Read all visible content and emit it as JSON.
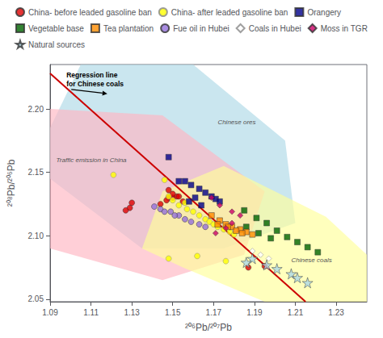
{
  "chart_data": {
    "type": "scatter",
    "xlabel": "²⁰⁶Pb/²⁰⁷Pb",
    "ylabel": "²⁰⁸Pb/²⁰⁶Pb",
    "xlim": [
      1.09,
      1.245
    ],
    "ylim": [
      2.048,
      2.235
    ],
    "xticks": [
      1.09,
      1.11,
      1.13,
      1.15,
      1.17,
      1.19,
      1.21,
      1.23
    ],
    "yticks": [
      2.05,
      {
        "value": 2.1,
        "label": "2.10"
      },
      2.15,
      {
        "value": 2.2,
        "label": "2.20"
      }
    ],
    "grid": false,
    "legend": "top",
    "regions": [
      {
        "name": "Chinese ores",
        "color": "#add8e6",
        "label_position": [
          1.172,
          2.192
        ],
        "polygon": [
          [
            1.105,
            2.235
          ],
          [
            1.16,
            2.235
          ],
          [
            1.205,
            2.175
          ],
          [
            1.21,
            2.11
          ],
          [
            1.175,
            2.09
          ],
          [
            1.135,
            2.09
          ],
          [
            1.09,
            2.145
          ],
          [
            1.09,
            2.185
          ]
        ]
      },
      {
        "name": "Traffic emission in China",
        "color": "#ffb6c1",
        "label_position": [
          1.093,
          2.162
        ],
        "polygon": [
          [
            1.09,
            2.2
          ],
          [
            1.145,
            2.195
          ],
          [
            1.195,
            2.135
          ],
          [
            1.185,
            2.085
          ],
          [
            1.145,
            2.065
          ],
          [
            1.09,
            2.09
          ]
        ]
      },
      {
        "name": "Chinese coals",
        "color": "#ffff99",
        "label_position": [
          1.208,
          2.083
        ],
        "polygon": [
          [
            1.145,
            2.135
          ],
          [
            1.175,
            2.155
          ],
          [
            1.225,
            2.115
          ],
          [
            1.245,
            2.085
          ],
          [
            1.245,
            2.048
          ],
          [
            1.195,
            2.048
          ],
          [
            1.155,
            2.075
          ],
          [
            1.135,
            2.09
          ]
        ]
      }
    ],
    "lines": [
      {
        "color": "#cc0000",
        "points": [
          [
            1.09,
            2.228
          ],
          [
            1.215,
            2.048
          ]
        ]
      }
    ],
    "annotations": [
      {
        "text": "Regression line\nfor Chinese coals",
        "x": 1.118,
        "y": 2.212,
        "text_position": [
          1.098,
          2.23
        ]
      }
    ],
    "series": [
      {
        "name": "China- before leaded gasoline ban",
        "color": "#dd0000",
        "marker": "circle",
        "values": [
          [
            1.148,
            2.13
          ],
          [
            1.15,
            2.13
          ],
          [
            1.152,
            2.131
          ],
          [
            1.15,
            2.133
          ],
          [
            1.147,
            2.128
          ],
          [
            1.155,
            2.127
          ],
          [
            1.144,
            2.125
          ],
          [
            1.13,
            2.126
          ],
          [
            1.129,
            2.122
          ],
          [
            1.127,
            2.12
          ],
          [
            1.148,
            2.136
          ],
          [
            1.153,
            2.131
          ],
          [
            1.195,
            2.076
          ],
          [
            1.187,
            2.075
          ]
        ]
      },
      {
        "name": "China- after leaded gasoline ban",
        "color": "#ffff00",
        "marker": "circle",
        "values": [
          [
            1.15,
            2.128
          ],
          [
            1.153,
            2.124
          ],
          [
            1.157,
            2.121
          ],
          [
            1.16,
            2.119
          ],
          [
            1.163,
            2.116
          ],
          [
            1.166,
            2.113
          ],
          [
            1.168,
            2.111
          ],
          [
            1.17,
            2.109
          ],
          [
            1.172,
            2.107
          ],
          [
            1.175,
            2.105
          ],
          [
            1.178,
            2.103
          ],
          [
            1.18,
            2.101
          ],
          [
            1.156,
            2.126
          ],
          [
            1.148,
            2.131
          ],
          [
            1.146,
            2.144
          ],
          [
            1.121,
            2.148
          ],
          [
            1.176,
            2.08
          ],
          [
            1.148,
            2.082
          ],
          [
            1.162,
            2.084
          ]
        ]
      },
      {
        "name": "Orangery",
        "color": "#00008b",
        "marker": "square",
        "values": [
          [
            1.148,
            2.162
          ],
          [
            1.153,
            2.143
          ],
          [
            1.159,
            2.14
          ],
          [
            1.163,
            2.137
          ],
          [
            1.166,
            2.134
          ],
          [
            1.169,
            2.131
          ],
          [
            1.171,
            2.129
          ],
          [
            1.173,
            2.127
          ],
          [
            1.156,
            2.143
          ],
          [
            1.161,
            2.13
          ],
          [
            1.164,
            2.124
          ],
          [
            1.158,
            2.127
          ]
        ]
      },
      {
        "name": "Vegetable base",
        "color": "#006400",
        "marker": "square",
        "values": [
          [
            1.185,
            2.12
          ],
          [
            1.191,
            2.114
          ],
          [
            1.196,
            2.11
          ],
          [
            1.201,
            2.104
          ],
          [
            1.206,
            2.099
          ],
          [
            1.211,
            2.095
          ],
          [
            1.216,
            2.091
          ],
          [
            1.221,
            2.087
          ],
          [
            1.186,
            2.107
          ],
          [
            1.192,
            2.102
          ],
          [
            1.198,
            2.098
          ]
        ]
      },
      {
        "name": "Tea plantation",
        "color": "#ff8c00",
        "marker": "square",
        "values": [
          [
            1.169,
            2.116
          ],
          [
            1.173,
            2.112
          ],
          [
            1.176,
            2.109
          ],
          [
            1.179,
            2.107
          ],
          [
            1.183,
            2.105
          ],
          [
            1.186,
            2.103
          ],
          [
            1.189,
            2.101
          ],
          [
            1.177,
            2.107
          ],
          [
            1.181,
            2.104
          ],
          [
            1.184,
            2.102
          ],
          [
            1.172,
            2.109
          ]
        ]
      },
      {
        "name": "Fue oil in Hubei",
        "color": "#9370db",
        "marker": "circle",
        "values": [
          [
            1.141,
            2.123
          ],
          [
            1.144,
            2.121
          ],
          [
            1.149,
            2.119
          ],
          [
            1.153,
            2.116
          ],
          [
            1.156,
            2.113
          ],
          [
            1.159,
            2.111
          ],
          [
            1.163,
            2.109
          ],
          [
            1.166,
            2.107
          ],
          [
            1.146,
            2.119
          ],
          [
            1.151,
            2.116
          ]
        ]
      },
      {
        "name": "Coals in Hubei",
        "color": "#ffffff",
        "marker": "diamond",
        "values": [
          [
            1.189,
            2.088
          ],
          [
            1.193,
            2.085
          ],
          [
            1.197,
            2.082
          ]
        ]
      },
      {
        "name": "Moss in TGR",
        "color": "#cc0066",
        "marker": "diamond",
        "values": [
          [
            1.169,
            2.13
          ],
          [
            1.173,
            2.124
          ],
          [
            1.179,
            2.119
          ],
          [
            1.183,
            2.116
          ],
          [
            1.179,
            2.11
          ],
          [
            1.176,
            2.106
          ],
          [
            1.171,
            2.102
          ]
        ]
      },
      {
        "name": "Natural sources",
        "color": "#add8e6",
        "marker": "star",
        "values": [
          [
            1.189,
            2.082
          ],
          [
            1.196,
            2.077
          ],
          [
            1.201,
            2.074
          ],
          [
            1.208,
            2.07
          ],
          [
            1.211,
            2.067
          ],
          [
            1.216,
            2.063
          ],
          [
            1.186,
            2.079
          ]
        ]
      }
    ]
  }
}
